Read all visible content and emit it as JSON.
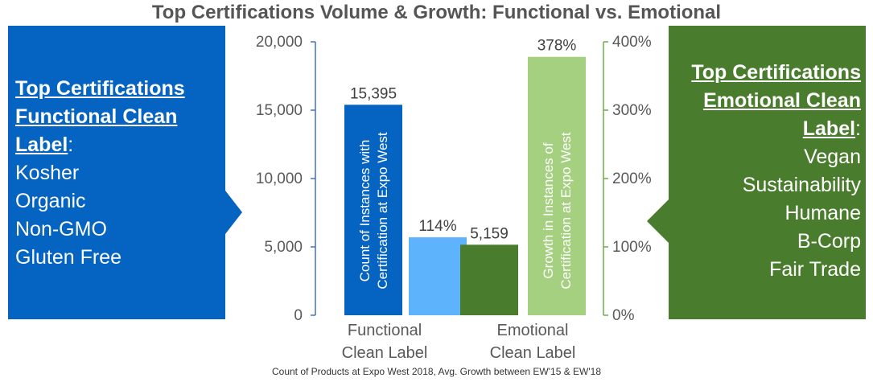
{
  "title": "Top Certifications Volume & Growth: Functional vs. Emotional",
  "footnote": "Count of Products at Expo West 2018, Avg. Growth between EW'15 & EW'18",
  "left_panel": {
    "heading": "Top Certifications Functional Clean Label",
    "items": [
      "Kosher",
      "Organic",
      "Non-GMO",
      "Gluten Free"
    ],
    "color": "#0563c1"
  },
  "right_panel": {
    "heading": "Top Certifications Emotional Clean Label",
    "items": [
      "Vegan",
      "Sustainability",
      "Humane",
      "B-Corp",
      "Fair Trade"
    ],
    "color": "#4a7c2d"
  },
  "chart_data": {
    "type": "bar",
    "categories": [
      "Functional Clean Label",
      "Emotional Clean Label"
    ],
    "series": [
      {
        "name": "Count of Instances with Certification at Expo West",
        "values": [
          15395,
          5159
        ],
        "data_labels": [
          "15,395",
          "5,159"
        ],
        "axis": "left",
        "colors": [
          "#0563c1",
          "#4a7c2d"
        ]
      },
      {
        "name": "Growth in Instances of Certification at Expo West",
        "values": [
          114,
          378
        ],
        "data_labels": [
          "114%",
          "378%"
        ],
        "axis": "right",
        "colors": [
          "#5db4fc",
          "#a5d07f"
        ]
      }
    ],
    "left_axis": {
      "ylim": [
        0,
        20000
      ],
      "ticks": [
        0,
        5000,
        10000,
        15000,
        20000
      ],
      "tick_labels": [
        "0",
        "5,000",
        "10,000",
        "15,000",
        "20,000"
      ],
      "color": "#4472c4"
    },
    "right_axis": {
      "ylim": [
        0,
        400
      ],
      "ticks": [
        0,
        100,
        200,
        300,
        400
      ],
      "tick_labels": [
        "0%",
        "100%",
        "200%",
        "300%",
        "400%"
      ],
      "color": "#70ad47"
    },
    "grid": false,
    "legend": "none"
  }
}
